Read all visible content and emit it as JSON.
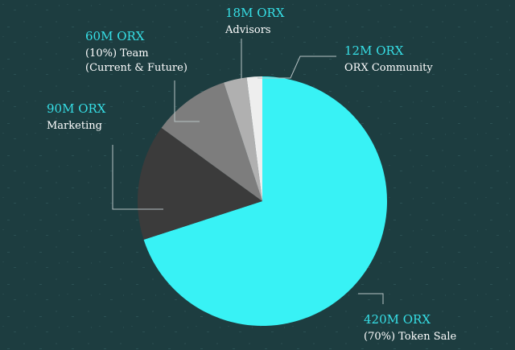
{
  "chart_data": {
    "type": "pie",
    "slices": [
      {
        "amount": "420M ORX",
        "desc": [
          "(70%) Token Sale"
        ],
        "value": 420,
        "color": "#38f2f5"
      },
      {
        "amount": "90M ORX",
        "desc": [
          "Marketing"
        ],
        "value": 90,
        "color": "#3b3b3b"
      },
      {
        "amount": "60M ORX",
        "desc": [
          "(10%) Team",
          "(Current & Future)"
        ],
        "value": 60,
        "color": "#7d7d7d"
      },
      {
        "amount": "18M ORX",
        "desc": [
          "Advisors"
        ],
        "value": 18,
        "color": "#b0b0b0"
      },
      {
        "amount": "12M ORX",
        "desc": [
          "ORX Community"
        ],
        "value": 12,
        "color": "#eeeeee"
      }
    ]
  }
}
